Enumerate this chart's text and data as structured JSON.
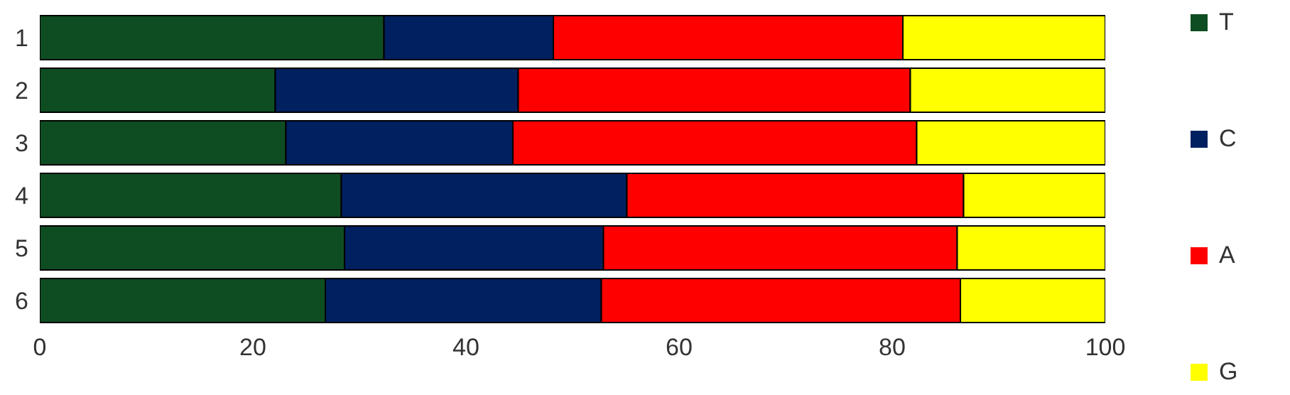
{
  "chart_data": {
    "type": "bar",
    "orientation": "horizontal",
    "stacked": true,
    "categories": [
      "1",
      "2",
      "3",
      "4",
      "5",
      "6"
    ],
    "series": [
      {
        "name": "T",
        "color": "#0e4d22",
        "values": [
          32.3,
          22.1,
          23.1,
          28.3,
          28.6,
          26.8
        ]
      },
      {
        "name": "C",
        "color": "#002060",
        "values": [
          15.9,
          22.8,
          21.3,
          26.8,
          24.3,
          25.9
        ]
      },
      {
        "name": "A",
        "color": "#ff0000",
        "values": [
          32.8,
          36.8,
          37.9,
          31.6,
          33.2,
          33.7
        ]
      },
      {
        "name": "G",
        "color": "#ffff00",
        "values": [
          19.0,
          18.3,
          17.7,
          13.3,
          13.9,
          13.6
        ]
      }
    ],
    "xlim": [
      0,
      100
    ],
    "xticks": [
      0,
      20,
      40,
      60,
      80,
      100
    ],
    "legend": "right",
    "grid": false
  }
}
